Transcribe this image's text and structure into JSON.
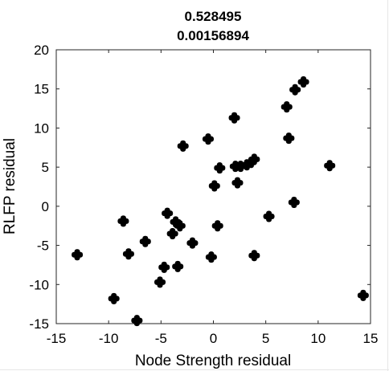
{
  "chart_data": {
    "type": "scatter",
    "title_lines": [
      "0.528495",
      "0.00156894"
    ],
    "xlabel": "Node Strength residual",
    "ylabel": "RLFP residual",
    "xlim": [
      -15,
      15
    ],
    "ylim": [
      -15,
      20
    ],
    "xticks": [
      "-15",
      "-10",
      "-5",
      "0",
      "5",
      "10",
      "15"
    ],
    "yticks": [
      "-15",
      "-10",
      "-5",
      "0",
      "5",
      "10",
      "15",
      "20"
    ],
    "grid": false,
    "marker": "filled-plus",
    "colors": {
      "marker": "#000000",
      "axes": "#262626",
      "text": "#000000"
    },
    "points": [
      {
        "x": -13.0,
        "y": -6.2
      },
      {
        "x": -9.5,
        "y": -11.8
      },
      {
        "x": -8.6,
        "y": -1.9
      },
      {
        "x": -8.1,
        "y": -6.1
      },
      {
        "x": -7.3,
        "y": -14.6
      },
      {
        "x": -6.5,
        "y": -4.5
      },
      {
        "x": -5.1,
        "y": -9.7
      },
      {
        "x": -4.7,
        "y": -7.8
      },
      {
        "x": -4.4,
        "y": -0.9
      },
      {
        "x": -3.9,
        "y": -3.5
      },
      {
        "x": -3.6,
        "y": -2.0
      },
      {
        "x": -3.4,
        "y": -7.7
      },
      {
        "x": -3.2,
        "y": -2.5
      },
      {
        "x": -2.9,
        "y": 7.7
      },
      {
        "x": -2.0,
        "y": -4.7
      },
      {
        "x": -0.5,
        "y": 8.6
      },
      {
        "x": -0.2,
        "y": -6.5
      },
      {
        "x": 0.1,
        "y": 2.6
      },
      {
        "x": 0.4,
        "y": -2.5
      },
      {
        "x": 0.6,
        "y": 4.9
      },
      {
        "x": 2.0,
        "y": 11.3
      },
      {
        "x": 2.1,
        "y": 5.1
      },
      {
        "x": 2.3,
        "y": 3.0
      },
      {
        "x": 2.6,
        "y": 5.1
      },
      {
        "x": 3.2,
        "y": 5.3
      },
      {
        "x": 3.6,
        "y": 5.6
      },
      {
        "x": 3.9,
        "y": 6.0
      },
      {
        "x": 3.9,
        "y": -6.3
      },
      {
        "x": 5.3,
        "y": -1.3
      },
      {
        "x": 7.0,
        "y": 12.7
      },
      {
        "x": 7.2,
        "y": 8.7
      },
      {
        "x": 7.7,
        "y": 0.5
      },
      {
        "x": 7.8,
        "y": 14.9
      },
      {
        "x": 8.6,
        "y": 15.9
      },
      {
        "x": 11.1,
        "y": 5.2
      },
      {
        "x": 14.3,
        "y": -11.4
      }
    ]
  }
}
